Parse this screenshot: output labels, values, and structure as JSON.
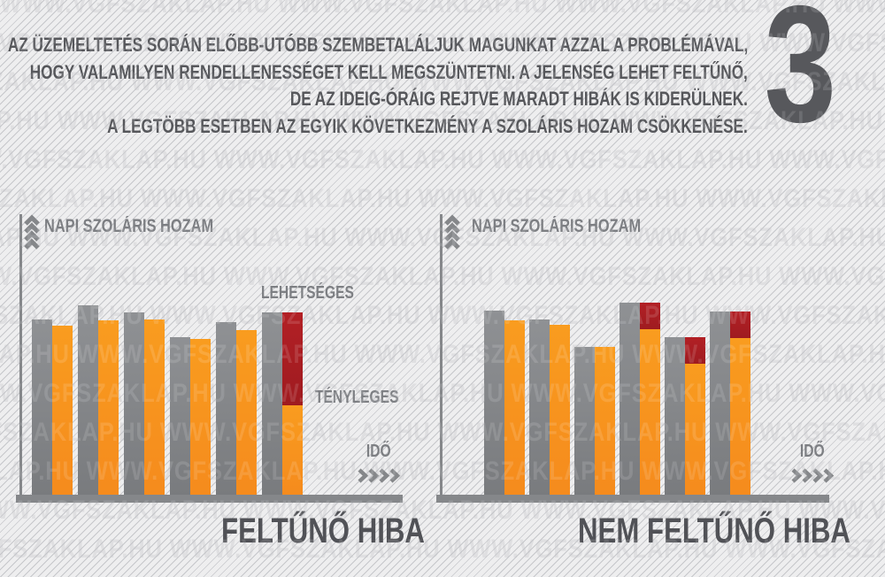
{
  "watermark": {
    "text": "WWW.VGFSZAKLAP.HU"
  },
  "section_number": {
    "value": "3"
  },
  "intro": {
    "lines": [
      "AZ ÜZEMELTETÉS SORÁN ELŐBB-UTÓBB SZEMBETALÁLJUK MAGUNKAT AZZAL A PROBLÉMÁVAL,",
      "HOGY VALAMILYEN RENDELLENESSÉGET KELL MEGSZÜNTETNI. A JELENSÉG LEHET FELTŰNŐ,",
      "DE AZ IDEIG-ÓRÁIG REJTVE MARADT HIBÁK IS KIDERÜLNEK.",
      "A LEGTÖBB ESETBEN AZ EGYIK KÖVETKEZMÉNY A SZOLÁRIS HOZAM CSÖKKENÉSE."
    ]
  },
  "colors": {
    "possible_gray": "#85878A",
    "actual_orange": "#F7941E",
    "loss_red": "#AC1F24",
    "dark_text": "#56575B",
    "label_gray": "#7D7F83"
  },
  "chart_data": [
    {
      "type": "bar",
      "title": "FELTŰNŐ HIBA",
      "ylabel": "NAPI SZOLÁRIS HOZAM",
      "xlabel": "IDŐ",
      "legend": {
        "possible": "LEHETSÉGES",
        "actual": "TÉNYLEGES"
      },
      "legend_position": "annotations-on-last-bar",
      "unit": "relative daily solar yield",
      "ylim": [
        0,
        230
      ],
      "grid": false,
      "days": [
        {
          "possible": 198,
          "actual": 191,
          "loss_highlighted": false
        },
        {
          "possible": 214,
          "actual": 197,
          "loss_highlighted": false
        },
        {
          "possible": 206,
          "actual": 198,
          "loss_highlighted": false
        },
        {
          "possible": 178,
          "actual": 176,
          "loss_highlighted": false
        },
        {
          "possible": 195,
          "actual": 186,
          "loss_highlighted": false
        },
        {
          "possible": 206,
          "actual": 101,
          "loss_highlighted": true
        }
      ]
    },
    {
      "type": "bar",
      "title": "NEM FELTŰNŐ HIBA",
      "ylabel": "NAPI SZOLÁRIS HOZAM",
      "xlabel": "IDŐ",
      "unit": "relative daily solar yield",
      "ylim": [
        0,
        230
      ],
      "grid": false,
      "days": [
        {
          "possible": 208,
          "actual": 197,
          "loss_highlighted": false
        },
        {
          "possible": 198,
          "actual": 192,
          "loss_highlighted": false
        },
        {
          "possible": 167,
          "actual": 167,
          "loss_highlighted": false
        },
        {
          "possible": 217,
          "actual": 187,
          "loss_highlighted": true
        },
        {
          "possible": 178,
          "actual": 148,
          "loss_highlighted": true
        },
        {
          "possible": 207,
          "actual": 177,
          "loss_highlighted": true
        }
      ]
    }
  ]
}
